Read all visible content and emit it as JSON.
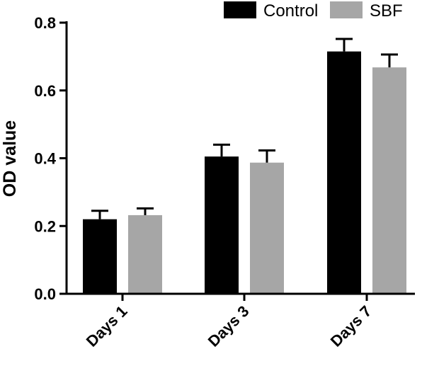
{
  "chart_data": {
    "type": "bar",
    "title": "",
    "xlabel": "",
    "ylabel": "OD value",
    "ylim": [
      0,
      0.8
    ],
    "yticks": [
      "0.0",
      "0.2",
      "0.4",
      "0.6",
      "0.8"
    ],
    "categories": [
      "Days 1",
      "Days 3",
      "Days 7"
    ],
    "series": [
      {
        "name": "Control",
        "color": "#000000",
        "values": [
          0.22,
          0.405,
          0.715
        ],
        "errors": [
          0.025,
          0.035,
          0.037
        ]
      },
      {
        "name": "SBF",
        "color": "#a6a6a6",
        "values": [
          0.232,
          0.387,
          0.668
        ],
        "errors": [
          0.02,
          0.036,
          0.038
        ]
      }
    ],
    "grid": false,
    "legend_position": "top-right"
  }
}
